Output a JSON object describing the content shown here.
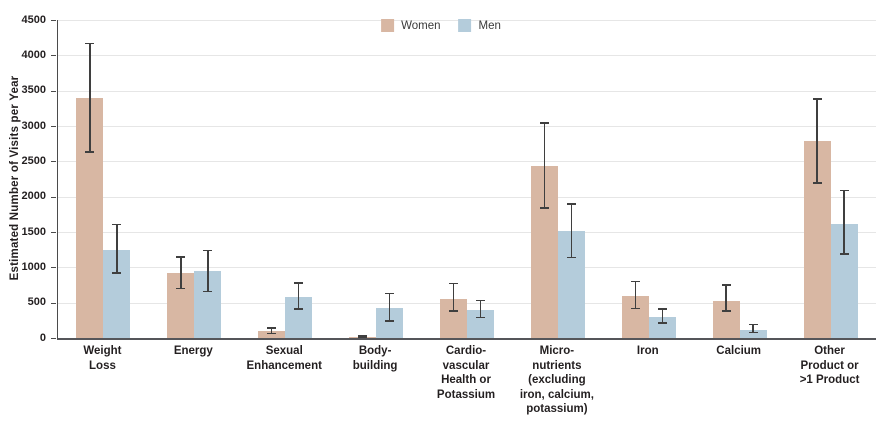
{
  "colors": {
    "women": "#d8b7a3",
    "men": "#b4ccdb",
    "error_bar": "#3f3f3f",
    "gridline": "#e6e6e6",
    "axis": "#4b4b4b",
    "baseline": "#55565a",
    "text": "#231f20"
  },
  "chart_data": {
    "type": "bar",
    "title": "",
    "xlabel": "",
    "ylabel": "Estimated Number of Visits per Year",
    "ylim": [
      0,
      4500
    ],
    "ytick_step": 500,
    "grid": true,
    "legend_position": "top-center",
    "error_bars": true,
    "categories": [
      "Weight Loss",
      "Energy",
      "Sexual Enhancement",
      "Body-building",
      "Cardio-vascular Health or Potassium",
      "Micro-nutrients (excluding iron, calcium, potassium)",
      "Iron",
      "Calcium",
      "Other Product or >1 Product"
    ],
    "category_label_lines": [
      [
        "Weight",
        "Loss"
      ],
      [
        "Energy"
      ],
      [
        "Sexual",
        "Enhancement"
      ],
      [
        "Body-",
        "building"
      ],
      [
        "Cardio-",
        "vascular",
        "Health or",
        "Potassium"
      ],
      [
        "Micro-",
        "nutrients",
        "(excluding",
        "iron, calcium,",
        "potassium)"
      ],
      [
        "Iron"
      ],
      [
        "Calcium"
      ],
      [
        "Other",
        "Product or",
        ">1 Product"
      ]
    ],
    "series": [
      {
        "name": "Women",
        "color": "#d8b7a3",
        "values": [
          3400,
          920,
          100,
          20,
          550,
          2440,
          600,
          530,
          2790
        ],
        "ci_low": [
          2620,
          690,
          50,
          5,
          370,
          1830,
          410,
          370,
          2180
        ],
        "ci_high": [
          4180,
          1160,
          155,
          40,
          780,
          3050,
          810,
          760,
          3390
        ]
      },
      {
        "name": "Men",
        "color": "#b4ccdb",
        "values": [
          1250,
          950,
          580,
          420,
          400,
          1510,
          300,
          120,
          1620
        ],
        "ci_low": [
          910,
          650,
          400,
          230,
          280,
          1130,
          200,
          70,
          1180
        ],
        "ci_high": [
          1620,
          1250,
          790,
          640,
          540,
          1910,
          420,
          200,
          2100
        ]
      }
    ]
  }
}
